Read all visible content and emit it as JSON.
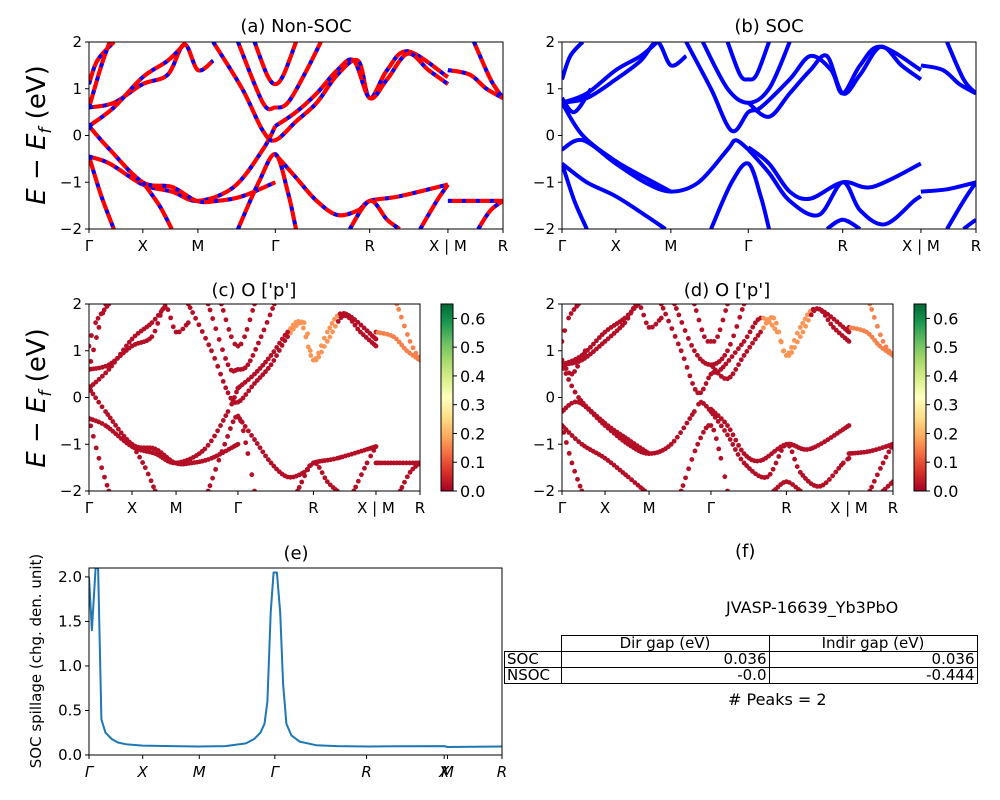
{
  "figure": {
    "material_id": "JVASP-16639_Yb3PbO",
    "kpath_labels": [
      "Γ",
      "X",
      "M",
      "Γ",
      "R",
      "X | M",
      "R"
    ],
    "kpath_positions": [
      0,
      0.13,
      0.263,
      0.45,
      0.678,
      0.867,
      1.0
    ],
    "spillage_tick_labels": [
      "Γ",
      "X",
      "M",
      "Γ",
      "R",
      "X",
      "M",
      "R"
    ],
    "spillage_tick_positions": [
      0,
      0.13,
      0.267,
      0.45,
      0.672,
      0.86,
      0.868,
      1.0
    ],
    "energy_ylabel": "E − E_f (eV)",
    "table": {
      "col_headers": [
        "Dir gap (eV)",
        "Indir gap (eV)"
      ],
      "rows": [
        {
          "label": "SOC",
          "dir_gap": "0.036",
          "indir_gap": "0.036"
        },
        {
          "label": "NSOC",
          "dir_gap": "-0.0",
          "indir_gap": "-0.444"
        }
      ],
      "peaks_text": "# Peaks = 2"
    },
    "f_title": "(f)"
  },
  "chart_data": [
    {
      "id": "a",
      "type": "line",
      "title": "(a) Non-SOC",
      "xlabel": "",
      "ylabel": "E − E_f (eV)",
      "ylim": [
        -2,
        2
      ],
      "yticks": [
        -2,
        -1,
        0,
        1,
        2
      ],
      "ytick_labels": [
        "−2",
        "−1",
        "0",
        "1",
        "2"
      ],
      "xticks": [
        "Γ",
        "X",
        "M",
        "Γ",
        "R",
        "X | M",
        "R"
      ],
      "style": "red line with blue dashes (spin up / spin down overlap)",
      "colors": {
        "primary": "#ff0000",
        "secondary": "#0000ff"
      },
      "series": [
        {
          "name": "band1",
          "x": [
            0,
            0.05,
            0.13,
            0.2,
            0.263,
            0.35,
            0.42,
            0.45
          ],
          "y": [
            -0.45,
            -0.6,
            -1.05,
            -1.2,
            -1.4,
            -1.1,
            -0.3,
            0.2
          ]
        },
        {
          "name": "band2",
          "x": [
            0,
            0.05,
            0.13,
            0.2,
            0.26,
            0.31,
            0.37,
            0.45
          ],
          "y": [
            0.2,
            -0.3,
            -1.0,
            -1.1,
            -1.4,
            -1.4,
            -1.3,
            -1.0
          ]
        },
        {
          "name": "band3",
          "x": [
            0,
            0.06,
            0.13,
            0.19,
            0.23,
            0.263,
            0.3
          ],
          "y": [
            0.6,
            0.7,
            1.1,
            1.3,
            1.95,
            1.4,
            1.6
          ]
        },
        {
          "name": "band4",
          "x": [
            0,
            0.06,
            0.13,
            0.19,
            0.23
          ],
          "y": [
            0.2,
            0.6,
            1.25,
            1.6,
            1.95
          ]
        },
        {
          "name": "band5",
          "x": [
            0,
            0.02,
            0.06
          ],
          "y": [
            1.1,
            1.6,
            2.0
          ]
        },
        {
          "name": "band6",
          "x": [
            0,
            0.03,
            0.05
          ],
          "y": [
            0.6,
            1.5,
            2.0
          ]
        },
        {
          "name": "band7",
          "x": [
            0.3,
            0.37,
            0.42,
            0.45,
            0.5,
            0.55,
            0.6,
            0.65,
            0.678,
            0.72,
            0.77,
            0.867
          ],
          "y": [
            2.0,
            1.0,
            0.1,
            -0.1,
            0.3,
            0.7,
            1.3,
            1.6,
            0.8,
            1.4,
            1.8,
            1.25
          ]
        },
        {
          "name": "band8",
          "x": [
            0.45,
            0.5,
            0.55,
            0.6,
            0.64,
            0.678,
            0.72,
            0.77,
            0.82,
            0.867
          ],
          "y": [
            0.2,
            0.5,
            0.9,
            1.4,
            1.6,
            0.8,
            1.2,
            1.75,
            1.4,
            1.1
          ]
        },
        {
          "name": "band9",
          "x": [
            0.36,
            0.42,
            0.45,
            0.48,
            0.52,
            0.56
          ],
          "y": [
            2.0,
            0.7,
            0.6,
            0.7,
            1.3,
            2.0
          ]
        },
        {
          "name": "band10",
          "x": [
            0.4,
            0.43,
            0.45,
            0.47,
            0.5
          ],
          "y": [
            2.0,
            1.3,
            1.1,
            1.3,
            2.0
          ]
        },
        {
          "name": "band11",
          "x": [
            0.45,
            0.5,
            0.55,
            0.6,
            0.65,
            0.678,
            0.75,
            0.867
          ],
          "y": [
            -0.4,
            -0.9,
            -1.4,
            -1.7,
            -1.6,
            -1.4,
            -1.3,
            -1.05
          ]
        },
        {
          "name": "band12",
          "x": [
            0.36,
            0.41,
            0.45,
            0.48,
            0.5
          ],
          "y": [
            -2.0,
            -1.0,
            -0.4,
            -1.2,
            -2.0
          ]
        },
        {
          "name": "band13",
          "x": [
            0.867,
            0.92,
            0.96,
            1.0
          ],
          "y": [
            1.4,
            1.3,
            1.0,
            0.8
          ]
        },
        {
          "name": "band14",
          "x": [
            0.93,
            0.97,
            1.0
          ],
          "y": [
            2.0,
            1.2,
            0.8
          ]
        },
        {
          "name": "band15",
          "x": [
            0.867,
            0.93,
            1.0
          ],
          "y": [
            -1.4,
            -1.4,
            -1.4
          ]
        },
        {
          "name": "band16",
          "x": [
            0.94,
            0.97,
            1.0
          ],
          "y": [
            -2.0,
            -1.6,
            -1.4
          ]
        },
        {
          "name": "band17",
          "x": [
            0.63,
            0.678,
            0.72,
            0.75
          ],
          "y": [
            -2.0,
            -1.4,
            -1.8,
            -2.0
          ]
        },
        {
          "name": "band18",
          "x": [
            0.8,
            0.84,
            0.867
          ],
          "y": [
            -2.0,
            -1.4,
            -1.05
          ]
        },
        {
          "name": "band19",
          "x": [
            0,
            0.03,
            0.06
          ],
          "y": [
            -0.45,
            -1.3,
            -2.0
          ]
        },
        {
          "name": "band20",
          "x": [
            0.13,
            0.17,
            0.2
          ],
          "y": [
            -1.0,
            -1.5,
            -2.0
          ]
        }
      ]
    },
    {
      "id": "b",
      "type": "line",
      "title": "(b) SOC",
      "xlabel": "",
      "ylabel": "",
      "ylim": [
        -2,
        2
      ],
      "yticks": [
        -2,
        -1,
        0,
        1,
        2
      ],
      "ytick_labels": [
        "−2",
        "−1",
        "0",
        "1",
        "2"
      ],
      "xticks": [
        "Γ",
        "X",
        "M",
        "Γ",
        "R",
        "X | M",
        "R"
      ],
      "colors": {
        "primary": "#0000ff"
      },
      "series": [
        {
          "name": "band1",
          "x": [
            0,
            0.05,
            0.13,
            0.2,
            0.263,
            0.33,
            0.4,
            0.42,
            0.45
          ],
          "y": [
            -0.3,
            -0.1,
            -0.6,
            -1.0,
            -1.2,
            -1.0,
            -0.3,
            -0.1,
            -0.3
          ]
        },
        {
          "name": "band2",
          "x": [
            0,
            0.05,
            0.13,
            0.2,
            0.263
          ],
          "y": [
            0.7,
            0.0,
            -0.55,
            -0.9,
            -1.2
          ]
        },
        {
          "name": "band3",
          "x": [
            0,
            0.06,
            0.13,
            0.2,
            0.25
          ],
          "y": [
            -0.6,
            -1.0,
            -1.3,
            -1.7,
            -2.0
          ]
        },
        {
          "name": "band4",
          "x": [
            0,
            0.03,
            0.06
          ],
          "y": [
            -0.6,
            -1.4,
            -2.0
          ]
        },
        {
          "name": "band5",
          "x": [
            0,
            0.06,
            0.13,
            0.19,
            0.23,
            0.263,
            0.3
          ],
          "y": [
            0.7,
            0.8,
            1.2,
            1.6,
            2.0,
            1.5,
            1.7
          ]
        },
        {
          "name": "band6",
          "x": [
            0,
            0.06,
            0.13,
            0.19,
            0.23
          ],
          "y": [
            0.7,
            0.9,
            1.4,
            1.7,
            2.0
          ]
        },
        {
          "name": "band7",
          "x": [
            0,
            0.03,
            0.07
          ],
          "y": [
            0.8,
            0.5,
            1.0
          ]
        },
        {
          "name": "band8",
          "x": [
            0,
            0.02,
            0.05
          ],
          "y": [
            1.2,
            1.7,
            2.0
          ]
        },
        {
          "name": "band9",
          "x": [
            0.3,
            0.36,
            0.41,
            0.45,
            0.48,
            0.55,
            0.6,
            0.65,
            0.678,
            0.72,
            0.77,
            0.867
          ],
          "y": [
            2.0,
            1.0,
            0.1,
            0.5,
            0.6,
            1.2,
            1.7,
            1.4,
            0.9,
            1.5,
            1.9,
            1.4
          ]
        },
        {
          "name": "band10",
          "x": [
            0.45,
            0.5,
            0.55,
            0.6,
            0.64,
            0.678,
            0.72,
            0.77,
            0.82,
            0.867
          ],
          "y": [
            0.7,
            0.4,
            0.9,
            1.4,
            1.7,
            0.9,
            1.3,
            1.9,
            1.5,
            1.2
          ]
        },
        {
          "name": "band11",
          "x": [
            0.34,
            0.4,
            0.45,
            0.5,
            0.55
          ],
          "y": [
            2.0,
            1.0,
            0.7,
            1.0,
            2.0
          ]
        },
        {
          "name": "band12",
          "x": [
            0.4,
            0.43,
            0.45,
            0.47,
            0.5
          ],
          "y": [
            2.0,
            1.3,
            1.2,
            1.3,
            2.0
          ]
        },
        {
          "name": "band13",
          "x": [
            0.45,
            0.5,
            0.55,
            0.6,
            0.678,
            0.75,
            0.867
          ],
          "y": [
            -0.25,
            -0.6,
            -1.2,
            -1.35,
            -1.0,
            -1.1,
            -0.6
          ]
        },
        {
          "name": "band14",
          "x": [
            0.45,
            0.5,
            0.55,
            0.62,
            0.678,
            0.72,
            0.78,
            0.85,
            0.867
          ],
          "y": [
            -0.3,
            -0.8,
            -1.4,
            -1.7,
            -1.0,
            -1.6,
            -1.9,
            -1.4,
            -1.3
          ]
        },
        {
          "name": "band15",
          "x": [
            0.36,
            0.41,
            0.45,
            0.48,
            0.5
          ],
          "y": [
            -2.0,
            -1.0,
            -0.6,
            -1.3,
            -2.0
          ]
        },
        {
          "name": "band16",
          "x": [
            0.64,
            0.678,
            0.72
          ],
          "y": [
            -2.0,
            -1.8,
            -2.0
          ]
        },
        {
          "name": "band17",
          "x": [
            0.867,
            0.92,
            0.96,
            1.0
          ],
          "y": [
            1.5,
            1.4,
            1.1,
            0.9
          ]
        },
        {
          "name": "band18",
          "x": [
            0.93,
            0.97,
            1.0
          ],
          "y": [
            2.0,
            1.2,
            0.9
          ]
        },
        {
          "name": "band19",
          "x": [
            0.867,
            0.93,
            1.0
          ],
          "y": [
            -1.2,
            -1.15,
            -1.0
          ]
        },
        {
          "name": "band20",
          "x": [
            0.93,
            0.97,
            1.0
          ],
          "y": [
            -2.0,
            -1.4,
            -1.0
          ]
        },
        {
          "name": "band21",
          "x": [
            0.97,
            1.0
          ],
          "y": [
            -2.0,
            -1.8
          ]
        }
      ]
    },
    {
      "id": "c",
      "type": "scatter",
      "title": "(c)  O ['p']",
      "xlabel": "",
      "ylabel": "E − E_f (eV)",
      "ylim": [
        -2,
        2
      ],
      "yticks": [
        -2,
        -1,
        0,
        1,
        2
      ],
      "ytick_labels": [
        "−2",
        "−1",
        "0",
        "1",
        "2"
      ],
      "xticks": [
        "Γ",
        "X",
        "M",
        "Γ",
        "R",
        "X | M",
        "R"
      ],
      "colorbar": {
        "cmap": "RdYlGn",
        "range": [
          0,
          0.65
        ],
        "ticks": [
          "0.0",
          "0.1",
          "0.2",
          "0.3",
          "0.4",
          "0.5",
          "0.6"
        ]
      },
      "note": "same band structure as (a), colored by O p-orbital projection; mostly ~0.0–0.05, R-region conduction band ~0.15"
    },
    {
      "id": "d",
      "type": "scatter",
      "title": "(d) O ['p']",
      "xlabel": "",
      "ylabel": "",
      "ylim": [
        -2,
        2
      ],
      "yticks": [
        -2,
        -1,
        0,
        1,
        2
      ],
      "ytick_labels": [
        "−2",
        "−1",
        "0",
        "1",
        "2"
      ],
      "xticks": [
        "Γ",
        "X",
        "M",
        "Γ",
        "R",
        "X | M",
        "R"
      ],
      "colorbar": {
        "cmap": "RdYlGn",
        "range": [
          0,
          0.65
        ],
        "ticks": [
          "0.0",
          "0.1",
          "0.2",
          "0.3",
          "0.4",
          "0.5",
          "0.6"
        ]
      },
      "note": "same band structure as (b), colored by O p-orbital projection"
    },
    {
      "id": "e",
      "type": "line",
      "title": "(e)",
      "xlabel": "",
      "ylabel": "SOC spillage (chg. den. unit)",
      "ylim": [
        0,
        2.1
      ],
      "yticks": [
        0.0,
        0.5,
        1.0,
        1.5,
        2.0
      ],
      "ytick_labels": [
        "0.0",
        "0.5",
        "1.0",
        "1.5",
        "2.0"
      ],
      "xticks": [
        "Γ",
        "X",
        "M",
        "Γ",
        "R",
        "X",
        "M",
        "R"
      ],
      "color": "#1f77b4",
      "x": [
        0,
        0.007,
        0.016,
        0.022,
        0.03,
        0.04,
        0.055,
        0.07,
        0.09,
        0.13,
        0.2,
        0.263,
        0.33,
        0.38,
        0.4,
        0.415,
        0.425,
        0.432,
        0.44,
        0.447,
        0.455,
        0.463,
        0.47,
        0.478,
        0.49,
        0.51,
        0.55,
        0.6,
        0.678,
        0.75,
        0.86,
        0.868,
        0.93,
        1.0
      ],
      "y": [
        2.0,
        1.4,
        2.1,
        2.1,
        0.4,
        0.25,
        0.18,
        0.14,
        0.12,
        0.105,
        0.1,
        0.095,
        0.1,
        0.13,
        0.18,
        0.25,
        0.35,
        0.6,
        1.6,
        2.05,
        2.05,
        1.6,
        0.8,
        0.35,
        0.22,
        0.15,
        0.11,
        0.1,
        0.095,
        0.098,
        0.1,
        0.09,
        0.092,
        0.095
      ]
    }
  ]
}
